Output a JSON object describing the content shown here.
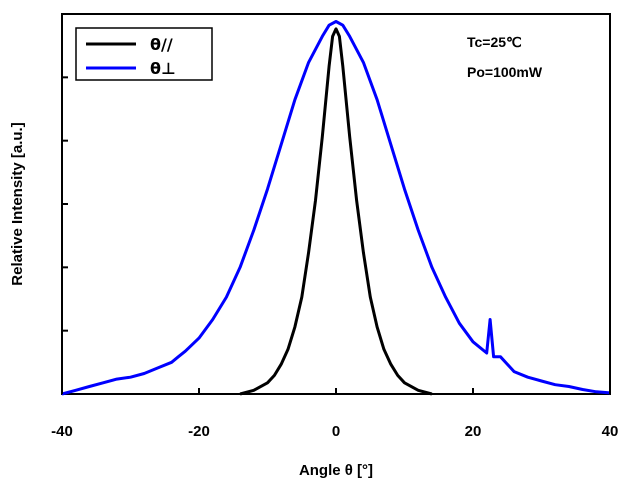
{
  "chart_data": {
    "type": "line",
    "xlabel": "Angle θ [°]",
    "ylabel": "Relative Intensity [a.u.]",
    "xlim": [
      -40,
      40
    ],
    "ylim": [
      0,
      1.02
    ],
    "x_ticks": [
      "-40",
      "-20",
      "0",
      "20",
      "40"
    ],
    "y_tick_count": 6,
    "grid": false,
    "legend_position": "top-left",
    "annotations": [
      "Tc=25℃",
      "Po=100mW"
    ],
    "series": [
      {
        "name": "θ//",
        "color": "#000000",
        "x": [
          -14,
          -12,
          -10,
          -9,
          -8,
          -7,
          -6,
          -5,
          -4,
          -3,
          -2,
          -1,
          -0.5,
          0,
          0.5,
          1,
          2,
          3,
          4,
          5,
          6,
          7,
          8,
          9,
          10,
          12,
          14
        ],
        "y": [
          0.0,
          0.01,
          0.03,
          0.05,
          0.08,
          0.12,
          0.18,
          0.26,
          0.38,
          0.52,
          0.69,
          0.88,
          0.96,
          0.98,
          0.96,
          0.88,
          0.69,
          0.52,
          0.38,
          0.26,
          0.18,
          0.12,
          0.08,
          0.05,
          0.03,
          0.01,
          0.0
        ]
      },
      {
        "name": "θ⊥",
        "color": "#0000ff",
        "x": [
          -40,
          -38,
          -36,
          -34,
          -32,
          -30,
          -28,
          -26,
          -24,
          -23,
          -22,
          -20,
          -18,
          -16,
          -14,
          -12,
          -10,
          -8,
          -6,
          -4,
          -2,
          -1,
          0,
          1,
          2,
          4,
          6,
          8,
          10,
          12,
          14,
          16,
          18,
          20,
          22,
          22.5,
          23,
          24,
          26,
          28,
          30,
          32,
          34,
          36,
          38,
          40
        ],
        "y": [
          0.0,
          0.01,
          0.02,
          0.03,
          0.04,
          0.045,
          0.055,
          0.07,
          0.085,
          0.1,
          0.115,
          0.15,
          0.2,
          0.26,
          0.34,
          0.44,
          0.55,
          0.67,
          0.79,
          0.89,
          0.96,
          0.99,
          1.0,
          0.99,
          0.96,
          0.89,
          0.79,
          0.67,
          0.55,
          0.44,
          0.34,
          0.26,
          0.19,
          0.14,
          0.11,
          0.2,
          0.1,
          0.1,
          0.06,
          0.045,
          0.035,
          0.025,
          0.02,
          0.012,
          0.006,
          0.003
        ]
      }
    ]
  }
}
